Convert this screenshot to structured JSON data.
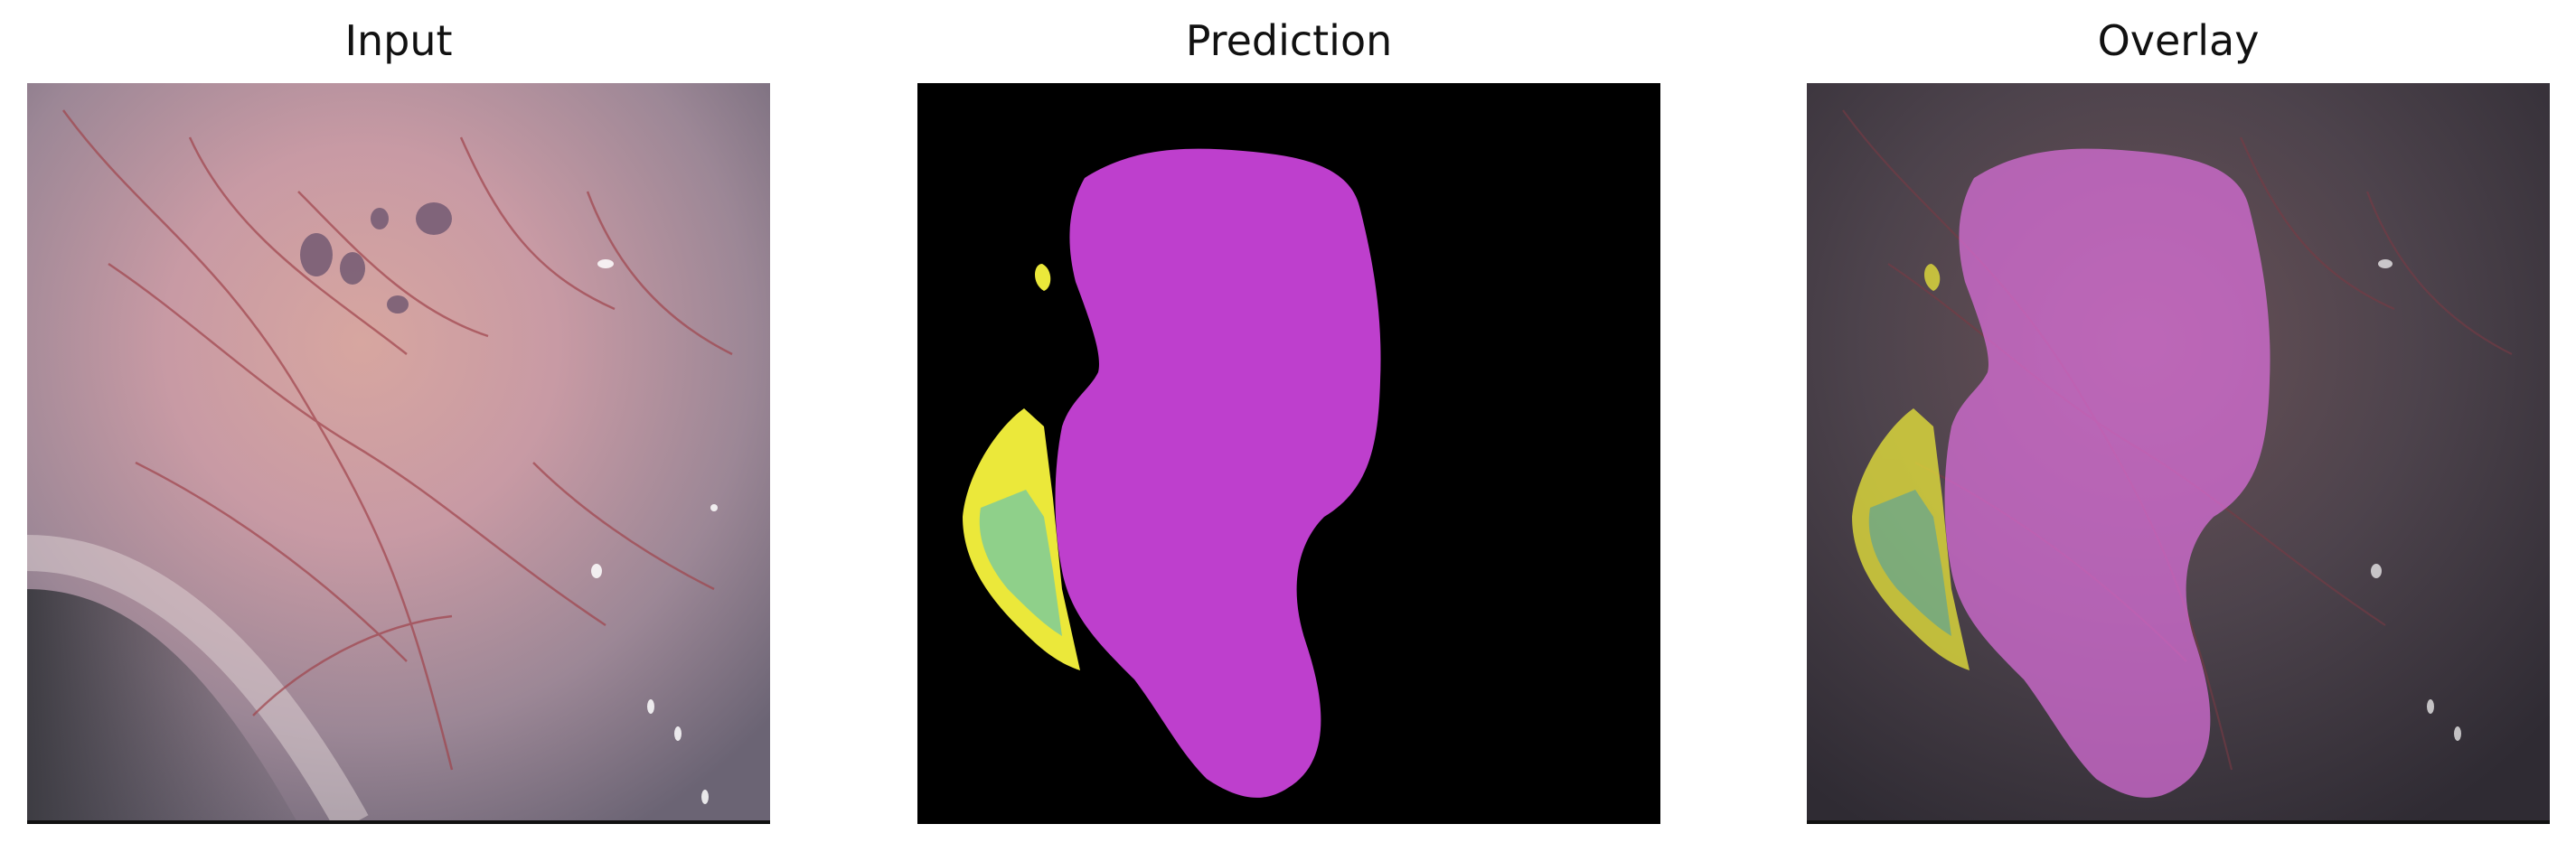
{
  "titles": {
    "input": "Input",
    "prediction": "Prediction",
    "overlay": "Overlay"
  },
  "colors": {
    "background": "#ffffff",
    "prediction_background": "#000000",
    "class_magenta": "#be3fcd",
    "class_yellow": "#ebe83a",
    "class_green": "#8fd08a"
  }
}
